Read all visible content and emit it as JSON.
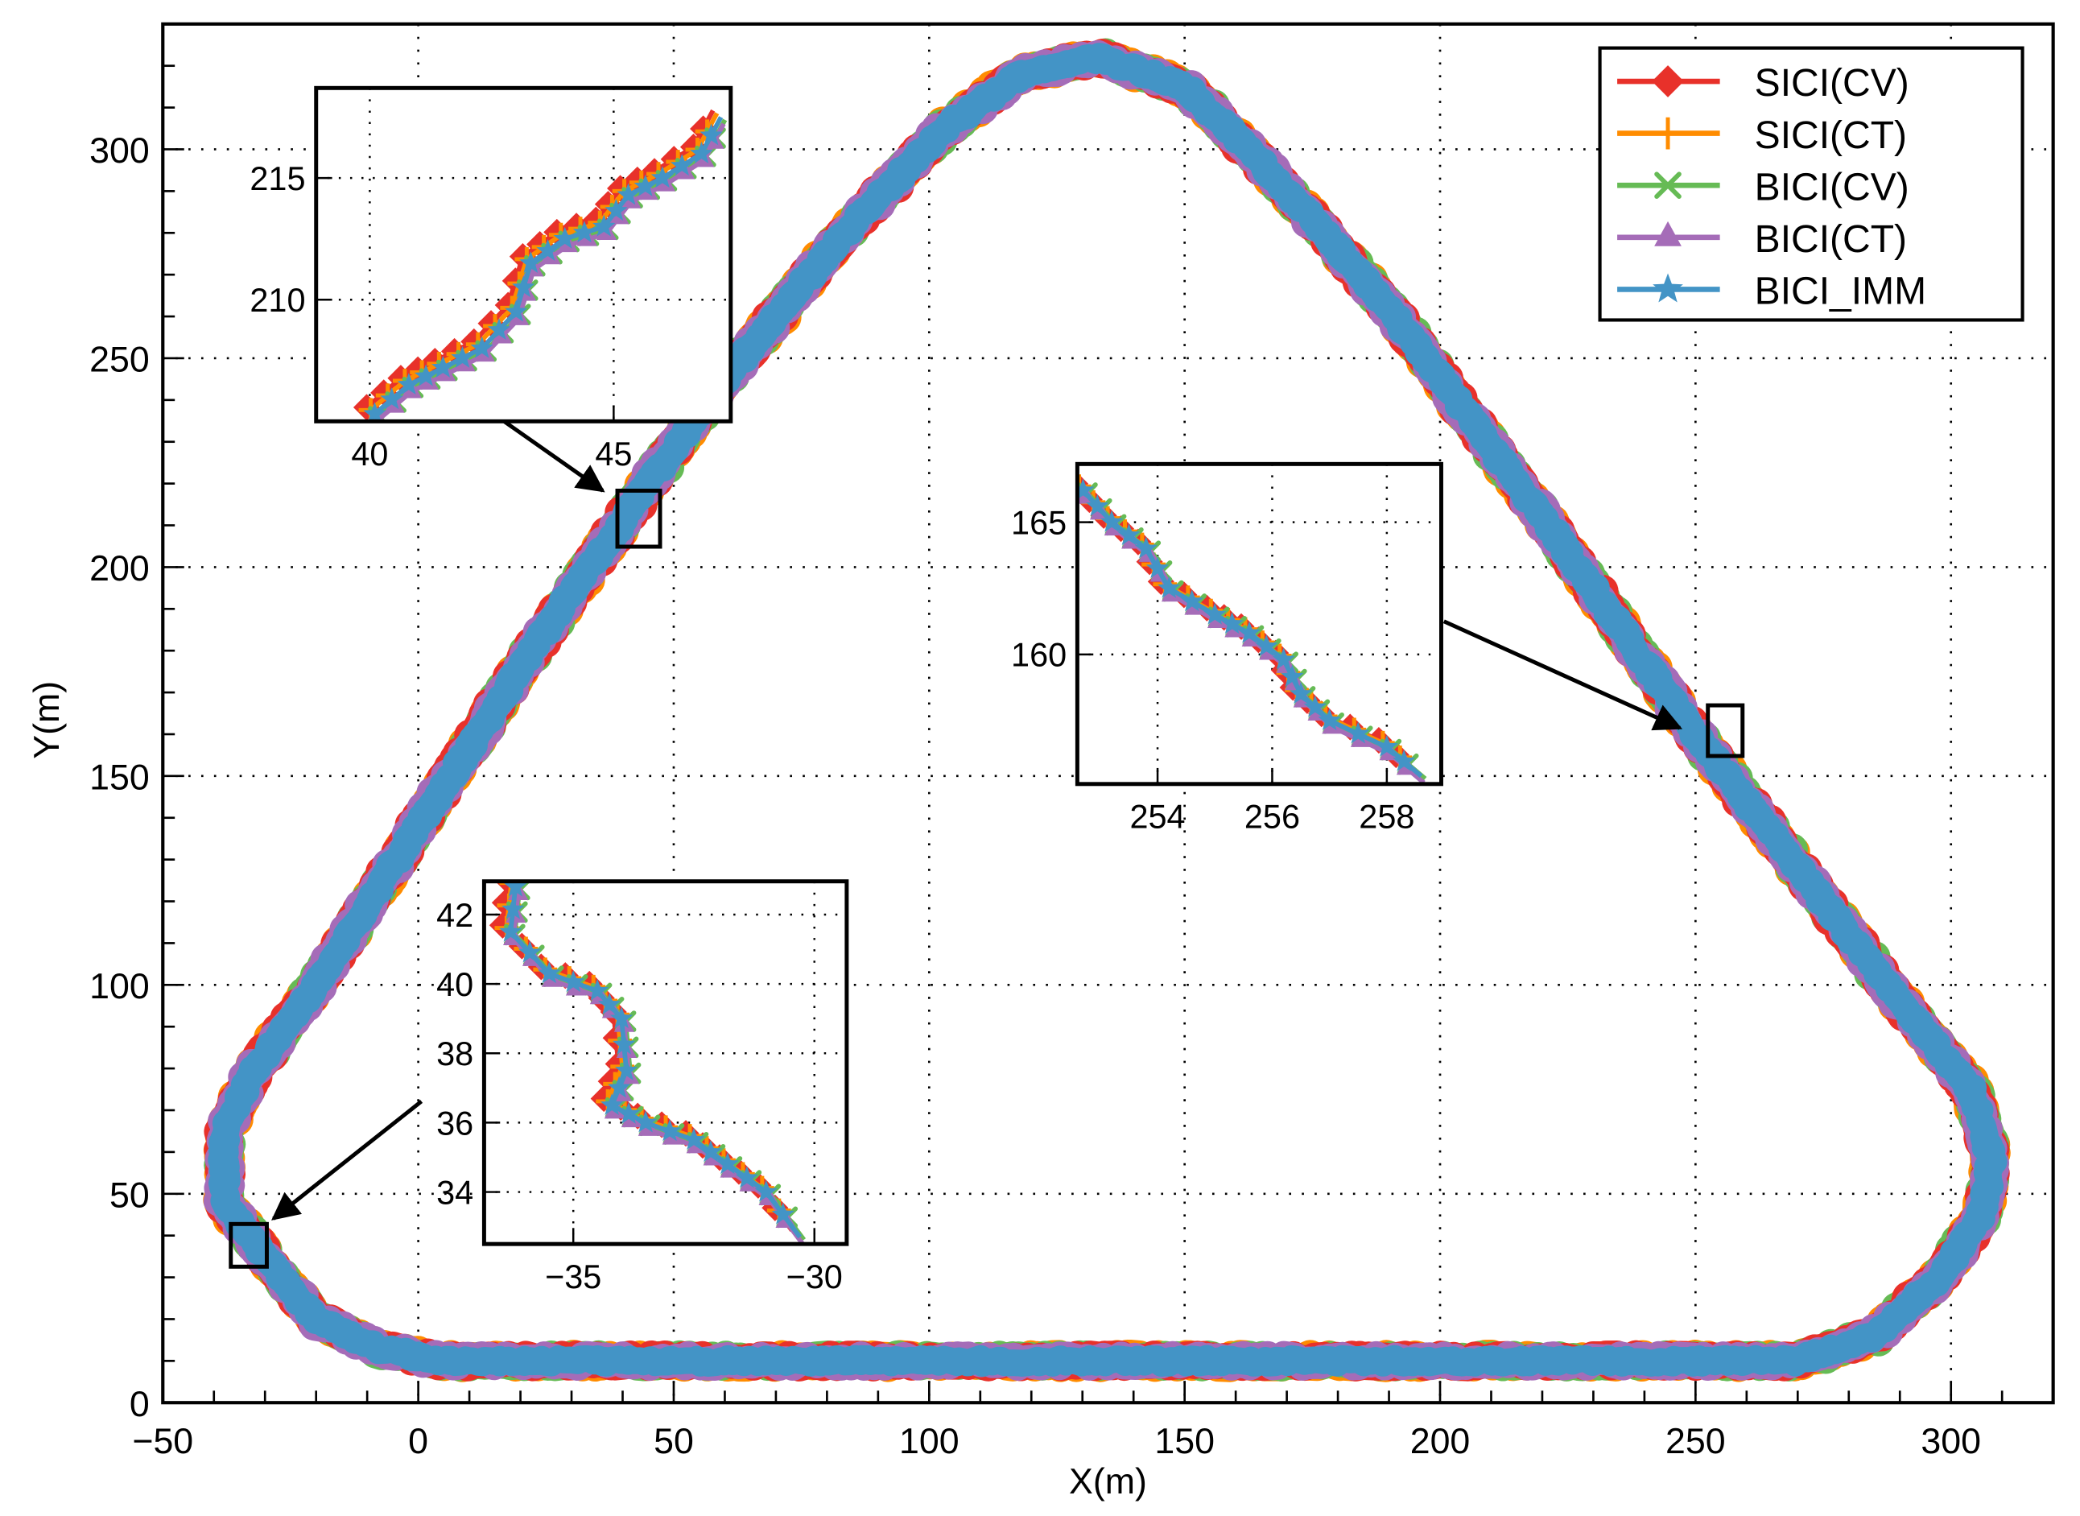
{
  "chart_data": {
    "type": "line",
    "xlabel": "X(m)",
    "ylabel": "Y(m)",
    "xlim": [
      -50,
      320
    ],
    "ylim": [
      0,
      330
    ],
    "xticks": [
      -50,
      0,
      50,
      100,
      150,
      200,
      250,
      300
    ],
    "xtick_labels": [
      "−50",
      "0",
      "50",
      "100",
      "150",
      "200",
      "250",
      "300"
    ],
    "yticks": [
      0,
      50,
      100,
      150,
      200,
      250,
      300
    ],
    "ytick_labels": [
      "0",
      "50",
      "100",
      "150",
      "200",
      "250",
      "300"
    ],
    "grid": true,
    "grid_style": "dotted",
    "legend_position": "top-right",
    "series": [
      {
        "name": "SICI(CV)",
        "color": "#e8312a",
        "marker": "diamond"
      },
      {
        "name": "SICI(CT)",
        "color": "#ff8c00",
        "marker": "plus"
      },
      {
        "name": "BICI(CV)",
        "color": "#66bb55",
        "marker": "x"
      },
      {
        "name": "BICI(CT)",
        "color": "#a56cb8",
        "marker": "triangle"
      },
      {
        "name": "BICI_IMM",
        "color": "#4394c6",
        "marker": "star"
      }
    ],
    "trajectory": [
      [
        -30,
        35
      ],
      [
        -20,
        20
      ],
      [
        -8,
        13
      ],
      [
        5,
        10
      ],
      [
        50,
        10
      ],
      [
        100,
        10
      ],
      [
        150,
        10
      ],
      [
        200,
        10
      ],
      [
        250,
        10
      ],
      [
        270,
        10
      ],
      [
        285,
        16
      ],
      [
        298,
        30
      ],
      [
        306,
        45
      ],
      [
        308,
        58
      ],
      [
        304,
        75
      ],
      [
        295,
        88
      ],
      [
        270,
        128
      ],
      [
        250,
        160
      ],
      [
        220,
        212
      ],
      [
        190,
        262
      ],
      [
        165,
        297
      ],
      [
        150,
        315
      ],
      [
        133,
        322
      ],
      [
        118,
        318
      ],
      [
        103,
        305
      ],
      [
        85,
        282
      ],
      [
        60,
        245
      ],
      [
        45,
        220
      ],
      [
        25,
        185
      ],
      [
        0,
        138
      ],
      [
        -20,
        100
      ],
      [
        -32,
        80
      ],
      [
        -38,
        65
      ],
      [
        -38,
        48
      ],
      [
        -30,
        35
      ]
    ],
    "insets": [
      {
        "xlim": [
          38.9,
          47.4
        ],
        "ylim": [
          205,
          218.7
        ],
        "xticks": [
          40,
          45
        ],
        "xtick_labels": [
          "40",
          "45"
        ],
        "yticks": [
          210,
          215
        ],
        "ytick_labels": [
          "210",
          "215"
        ],
        "zoom_region": {
          "x": [
            39.5,
            48
          ],
          "y": [
            206,
            219
          ]
        },
        "track": [
          [
            40.1,
            205.3
          ],
          [
            40.8,
            206.5
          ],
          [
            41.5,
            207.2
          ],
          [
            42.3,
            208
          ],
          [
            43,
            209.5
          ],
          [
            43.3,
            211.5
          ],
          [
            44,
            212.5
          ],
          [
            44.8,
            213
          ],
          [
            45.3,
            214.3
          ],
          [
            46,
            215
          ],
          [
            46.8,
            216
          ],
          [
            47.2,
            217.5
          ]
        ]
      },
      {
        "xlim": [
          252.6,
          258.95
        ],
        "ylim": [
          155.1,
          167.2
        ],
        "xticks": [
          254,
          256,
          258
        ],
        "xtick_labels": [
          "254",
          "256",
          "258"
        ],
        "yticks": [
          160,
          165
        ],
        "ytick_labels": [
          "160",
          "165"
        ],
        "zoom_region": {
          "x": [
            252.5,
            259
          ],
          "y": [
            155,
            167
          ]
        },
        "track": [
          [
            252.7,
            166.2
          ],
          [
            253.2,
            165
          ],
          [
            253.8,
            164
          ],
          [
            254.2,
            162.5
          ],
          [
            255,
            161.5
          ],
          [
            255.6,
            160.8
          ],
          [
            256.2,
            159.8
          ],
          [
            256.5,
            158.5
          ],
          [
            257,
            157.5
          ],
          [
            258,
            156.5
          ],
          [
            258.6,
            155.4
          ]
        ]
      },
      {
        "xlim": [
          -36.85,
          -29.33
        ],
        "ylim": [
          32.5,
          42.96
        ],
        "xticks": [
          -35,
          -30
        ],
        "xtick_labels": [
          "−35",
          "−30"
        ],
        "yticks": [
          34,
          36,
          38,
          40,
          42
        ],
        "ytick_labels": [
          "34",
          "36",
          "38",
          "40",
          "42"
        ],
        "zoom_region": {
          "x": [
            -37,
            -30
          ],
          "y": [
            32.5,
            42.5
          ]
        },
        "track": [
          [
            -36.2,
            42.8
          ],
          [
            -36.3,
            41.5
          ],
          [
            -35.5,
            40.3
          ],
          [
            -34.5,
            39.8
          ],
          [
            -34,
            39
          ],
          [
            -33.9,
            37.5
          ],
          [
            -34.2,
            36.5
          ],
          [
            -33.5,
            36
          ],
          [
            -32.5,
            35.5
          ],
          [
            -31.8,
            34.8
          ],
          [
            -31,
            34
          ],
          [
            -30.3,
            32.7
          ]
        ]
      }
    ]
  }
}
